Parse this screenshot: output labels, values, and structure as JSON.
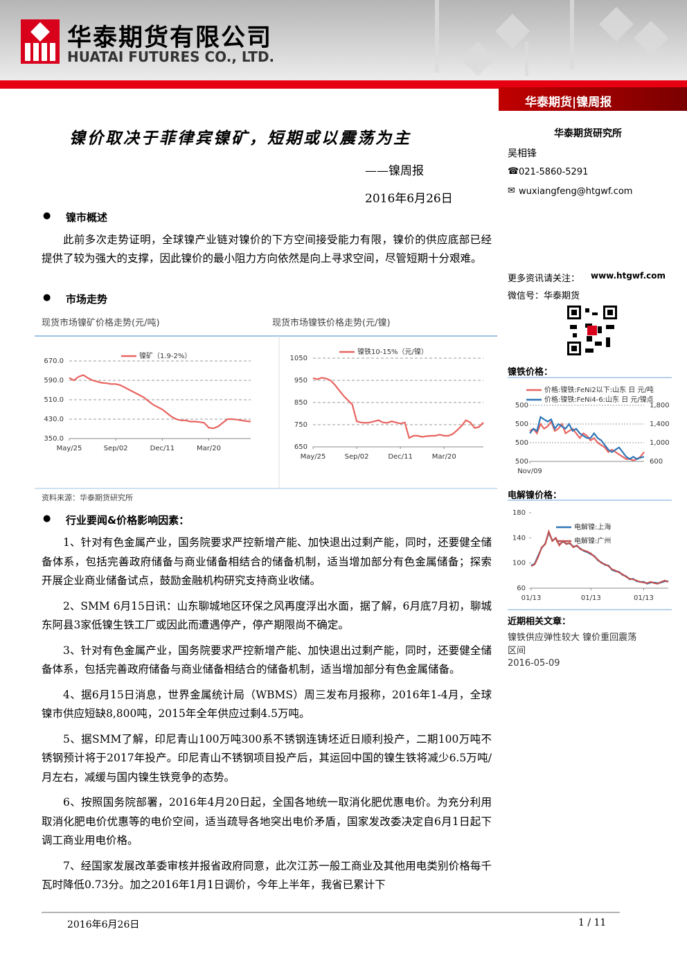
{
  "header": {
    "company_cn": "华泰期货有限公司",
    "company_en": "HUATAI FUTURES CO., LTD.",
    "banner": "华泰期货|镍周报"
  },
  "title": "镍价取决于菲律宾镍矿，短期或以震荡为主",
  "subtitle": "——镍周报",
  "date": "2016年6月26日",
  "sidebar": {
    "institute": "华泰期货研究所",
    "analyst": "吴相锋",
    "phone": "021-5860-5291",
    "email": "wuxiangfeng@htgwf.com",
    "follow_label": "更多资讯请关注：",
    "follow_url": "www.htgwf.com",
    "wechat": "微信号：华泰期货",
    "related_heading": "近期相关文章：",
    "related_title": "镍铁供应弹性较大 镍价重回震荡区间",
    "related_date": "2016-05-09"
  },
  "sections": [
    {
      "heading": "镍市概述",
      "paragraphs": [
        "此前多次走势证明，全球镍产业链对镍价的下方空间接受能力有限，镍价的供应底部已经提供了较为强大的支撑，因此镍价的最小阻力方向依然是向上寻求空间，尽管短期十分艰难。"
      ]
    },
    {
      "heading": "市场走势",
      "source": "资料来源：华泰期货研究所"
    },
    {
      "heading": "行业要闻&价格影响因素：",
      "paragraphs": [
        "1、针对有色金属产业，国务院要求严控新增产能、加快退出过剩产能，同时，还要健全储备体系，包括完善政府储备与商业储备相结合的储备机制，适当增加部分有色金属储备；探索开展企业商业储备试点，鼓励金融机构研究支持商业收储。",
        "2、SMM 6月15日讯：山东聊城地区环保之风再度浮出水面，据了解，6月底7月初，聊城东阿县3家低镍生铁工厂或因此而遭遇停产，停产期限尚不确定。",
        "3、针对有色金属产业，国务院要求严控新增产能、加快退出过剩产能，同时，还要健全储备体系，包括完善政府储备与商业储备相结合的储备机制，适当增加部分有色金属储备。",
        "4、据6月15日消息，世界金属统计局（WBMS）周三发布月报称，2016年1-4月，全球镍市供应短缺8,800吨，2015年全年供应过剩4.5万吨。",
        "5、据SMM了解，印尼青山100万吨300系不锈钢连铸坯近日顺利投产，二期100万吨不锈钢预计将于2017年投产。印尼青山不锈钢项目投产后，其运回中国的镍生铁将减少6.5万吨/月左右，减缓与国内镍生铁竞争的态势。",
        "6、按照国务院部署，2016年4月20日起，全国各地统一取消化肥优惠电价。为充分利用取消化肥电价优惠等的电价空间，适当疏导各地突出电价矛盾，国家发改委决定自6月1日起下调工商业用电价格。",
        "7、经国家发展改革委审核并报省政府同意，此次江苏一般工商业及其他用电类别价格每千瓦时降低0.73分。加之2016年1月1日调价，今年上半年，我省已累计下"
      ]
    }
  ],
  "footer": {
    "date": "2016年6月26日",
    "page": "1 / 11"
  },
  "chart_data": [
    {
      "type": "line",
      "title": "现货市场镍矿价格走势(元/吨)",
      "categories": [
        "May/25",
        null,
        null,
        null,
        null,
        null,
        null,
        null,
        null,
        null,
        "Sep/02",
        null,
        null,
        null,
        null,
        null,
        null,
        null,
        null,
        null,
        "Dec/11",
        null,
        null,
        null,
        null,
        null,
        null,
        null,
        null,
        null,
        "Mar/20",
        null,
        null,
        null,
        null,
        null,
        null,
        null,
        null,
        null
      ],
      "series": [
        {
          "name": "镍矿（1.9-2%）",
          "color": "#e8635f",
          "values": [
            600,
            590,
            605,
            612,
            600,
            590,
            585,
            580,
            578,
            575,
            575,
            570,
            560,
            550,
            540,
            530,
            520,
            505,
            490,
            480,
            470,
            455,
            440,
            430,
            425,
            425,
            420,
            420,
            418,
            415,
            395,
            392,
            400,
            415,
            430,
            430,
            428,
            425,
            422,
            420
          ]
        }
      ],
      "ylim": [
        350,
        670
      ],
      "yticks": [
        {
          "value": 350,
          "label": "350.0"
        },
        {
          "value": 430,
          "label": "430.0"
        },
        {
          "value": 510,
          "label": "510.0"
        },
        {
          "value": 590,
          "label": "590.0"
        },
        {
          "value": 670,
          "label": "670.0"
        }
      ],
      "grid": true
    },
    {
      "type": "line",
      "title": "现货市场镍铁价格走势(元/镍)",
      "categories": [
        "May/25",
        null,
        null,
        null,
        null,
        null,
        null,
        null,
        null,
        null,
        "Sep/02",
        null,
        null,
        null,
        null,
        null,
        null,
        null,
        null,
        null,
        "Dec/11",
        null,
        null,
        null,
        null,
        null,
        null,
        null,
        null,
        null,
        "Mar/20",
        null,
        null,
        null,
        null,
        null,
        null,
        null,
        null,
        null
      ],
      "series": [
        {
          "name": "镍铁10-15%（元/镍）",
          "color": "#e8635f",
          "values": [
            960,
            955,
            962,
            958,
            950,
            930,
            905,
            880,
            860,
            840,
            765,
            760,
            758,
            760,
            765,
            770,
            760,
            758,
            765,
            760,
            755,
            760,
            690,
            700,
            700,
            695,
            698,
            700,
            700,
            705,
            700,
            700,
            708,
            725,
            745,
            770,
            760,
            735,
            740,
            760
          ]
        }
      ],
      "ylim": [
        650,
        1050
      ],
      "yticks": [
        650,
        750,
        850,
        950,
        1050
      ],
      "grid": true
    },
    {
      "type": "line",
      "title": "镍铁价格：",
      "categories": [
        "Nov/09",
        null,
        null,
        null,
        null,
        null,
        null,
        null,
        null,
        null,
        null,
        null,
        null,
        null,
        null,
        null,
        null,
        null,
        null,
        null,
        null,
        null,
        null,
        null,
        null,
        null,
        null,
        null,
        null,
        null,
        null,
        null,
        null
      ],
      "series": [
        {
          "name": "价格:镍铁:FeNi2以下:山东 日 元/吨",
          "color": "#e8635f",
          "axis": "y2",
          "values": [
            1250,
            1300,
            1200,
            1400,
            1300,
            1350,
            1450,
            1250,
            1300,
            1400,
            1200,
            1250,
            1300,
            1200,
            1100,
            1200,
            1150,
            1050,
            1100,
            1000,
            950,
            900,
            800,
            850,
            800,
            750,
            700,
            650,
            650,
            620,
            650,
            700,
            800
          ]
        },
        {
          "name": "价格:镍铁:FeNi4-6:山东 日 元/镍点",
          "color": "#2e75b6",
          "axis": "y2",
          "values": [
            1200,
            1300,
            1250,
            1550,
            1500,
            1450,
            1500,
            1300,
            1400,
            1350,
            1300,
            1400,
            1250,
            1300,
            1200,
            1150,
            1100,
            1100,
            1200,
            1100,
            1050,
            950,
            850,
            800,
            850,
            900,
            800,
            700,
            650,
            700,
            650,
            680,
            700
          ]
        }
      ],
      "y_tick_labels": [
        "500",
        "500",
        "500",
        "500"
      ],
      "y2lim": [
        600,
        1800
      ],
      "y2ticks": [
        600,
        {
          "value": 1000,
          "label": "1,000"
        },
        {
          "value": 1400,
          "label": "1,400"
        },
        {
          "value": 1800,
          "label": "1,800"
        }
      ],
      "grid": true
    },
    {
      "type": "line",
      "title": "电解镍价格：",
      "categories": [
        "01/13",
        null,
        null,
        null,
        null,
        null,
        null,
        null,
        null,
        null,
        null,
        null,
        null,
        null,
        null,
        null,
        null,
        "01/13",
        null,
        null,
        null,
        null,
        null,
        null,
        null,
        null,
        null,
        null,
        null,
        null,
        null,
        null,
        "01/13",
        null,
        null,
        null,
        null,
        null,
        null,
        null
      ],
      "series": [
        {
          "name": "电解镍:上海",
          "color": "#2e75b6",
          "values": [
            96,
            99,
            112,
            124,
            131,
            148,
            136,
            139,
            129,
            134,
            131,
            131,
            126,
            127,
            123,
            119,
            117,
            114,
            111,
            104,
            101,
            97,
            96,
            89,
            87,
            86,
            81,
            79,
            74,
            75,
            71,
            70,
            70,
            67,
            69,
            69,
            68,
            69,
            71,
            71
          ]
        },
        {
          "name": "电解镍:广州",
          "color": "#c0504d",
          "values": [
            95,
            98,
            110,
            125,
            130,
            150,
            135,
            140,
            128,
            135,
            130,
            132,
            125,
            128,
            122,
            120,
            118,
            115,
            110,
            105,
            100,
            98,
            95,
            90,
            88,
            85,
            82,
            78,
            75,
            74,
            72,
            70,
            69,
            68,
            70,
            68,
            67,
            70,
            72,
            70
          ]
        }
      ],
      "ylim": [
        60,
        180
      ],
      "yticks": [
        60,
        100,
        140,
        180
      ],
      "grid": false
    }
  ]
}
